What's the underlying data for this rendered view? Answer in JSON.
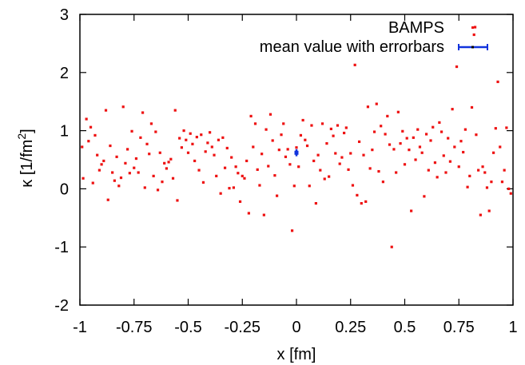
{
  "chart_data": {
    "type": "scatter",
    "xlabel": "x [fm]",
    "ylabel": "κ [1/fm",
    "ylabel_sup": "2",
    "ylabel_close": "]",
    "xlim": [
      -1,
      1
    ],
    "ylim": [
      -2,
      3
    ],
    "grid": false,
    "legend_position": "top-right",
    "x_ticks": [
      {
        "value": -1,
        "label": "-1"
      },
      {
        "value": -0.75,
        "label": "-0.75"
      },
      {
        "value": -0.5,
        "label": "-0.5"
      },
      {
        "value": -0.25,
        "label": "-0.25"
      },
      {
        "value": 0,
        "label": "0"
      },
      {
        "value": 0.25,
        "label": "0.25"
      },
      {
        "value": 0.5,
        "label": "0.5"
      },
      {
        "value": 0.75,
        "label": "0.75"
      },
      {
        "value": 1,
        "label": "1"
      }
    ],
    "y_ticks": [
      {
        "value": -2,
        "label": "-2"
      },
      {
        "value": -1,
        "label": "-1"
      },
      {
        "value": 0,
        "label": "0"
      },
      {
        "value": 1,
        "label": "1"
      },
      {
        "value": 2,
        "label": "2"
      },
      {
        "value": 3,
        "label": "3"
      }
    ],
    "series": [
      {
        "name": "BAMPS",
        "marker": "point",
        "color": "#ee1111",
        "points": [
          [
            -0.99,
            0.72
          ],
          [
            -0.985,
            0.18
          ],
          [
            -0.97,
            1.2
          ],
          [
            -0.96,
            0.82
          ],
          [
            -0.95,
            1.06
          ],
          [
            -0.94,
            0.1
          ],
          [
            -0.93,
            0.92
          ],
          [
            -0.92,
            0.58
          ],
          [
            -0.91,
            0.32
          ],
          [
            -0.9,
            0.42
          ],
          [
            -0.89,
            0.48
          ],
          [
            -0.88,
            1.35
          ],
          [
            -0.87,
            -0.19
          ],
          [
            -0.86,
            0.74
          ],
          [
            -0.85,
            0.28
          ],
          [
            -0.84,
            0.14
          ],
          [
            -0.83,
            0.55
          ],
          [
            -0.82,
            0.05
          ],
          [
            -0.81,
            0.19
          ],
          [
            -0.8,
            1.41
          ],
          [
            -0.79,
            0.44
          ],
          [
            -0.78,
            0.68
          ],
          [
            -0.77,
            0.27
          ],
          [
            -0.76,
            0.99
          ],
          [
            -0.75,
            0.36
          ],
          [
            -0.74,
            0.52
          ],
          [
            -0.73,
            0.28
          ],
          [
            -0.72,
            0.88
          ],
          [
            -0.71,
            1.31
          ],
          [
            -0.7,
            0.02
          ],
          [
            -0.69,
            0.77
          ],
          [
            -0.68,
            0.6
          ],
          [
            -0.67,
            1.12
          ],
          [
            -0.66,
            0.22
          ],
          [
            -0.65,
            0.98
          ],
          [
            -0.64,
            -0.02
          ],
          [
            -0.63,
            0.62
          ],
          [
            -0.62,
            0.12
          ],
          [
            -0.61,
            0.44
          ],
          [
            -0.6,
            0.35
          ],
          [
            -0.59,
            0.46
          ],
          [
            -0.58,
            0.51
          ],
          [
            -0.57,
            0.18
          ],
          [
            -0.56,
            1.35
          ],
          [
            -0.55,
            -0.2
          ],
          [
            -0.54,
            0.87
          ],
          [
            -0.53,
            0.71
          ],
          [
            -0.52,
            1.0
          ],
          [
            -0.51,
            0.84
          ],
          [
            -0.5,
            0.62
          ],
          [
            -0.49,
            0.95
          ],
          [
            -0.48,
            0.77
          ],
          [
            -0.47,
            0.48
          ],
          [
            -0.46,
            0.89
          ],
          [
            -0.45,
            0.32
          ],
          [
            -0.44,
            0.93
          ],
          [
            -0.43,
            0.11
          ],
          [
            -0.42,
            0.64
          ],
          [
            -0.41,
            0.79
          ],
          [
            -0.4,
            0.97
          ],
          [
            -0.39,
            0.72
          ],
          [
            -0.38,
            0.58
          ],
          [
            -0.37,
            0.22
          ],
          [
            -0.36,
            0.84
          ],
          [
            -0.35,
            -0.08
          ],
          [
            -0.34,
            0.88
          ],
          [
            -0.33,
            0.36
          ],
          [
            -0.32,
            0.7
          ],
          [
            -0.31,
            0.01
          ],
          [
            -0.3,
            0.54
          ],
          [
            -0.29,
            0.02
          ],
          [
            -0.28,
            0.38
          ],
          [
            -0.27,
            0.27
          ],
          [
            -0.26,
            -0.22
          ],
          [
            -0.25,
            0.22
          ],
          [
            -0.24,
            0.18
          ],
          [
            -0.23,
            0.48
          ],
          [
            -0.22,
            -0.42
          ],
          [
            -0.21,
            1.25
          ],
          [
            -0.2,
            0.72
          ],
          [
            -0.19,
            1.12
          ],
          [
            -0.18,
            0.33
          ],
          [
            -0.17,
            0.06
          ],
          [
            -0.16,
            0.6
          ],
          [
            -0.15,
            -0.45
          ],
          [
            -0.14,
            1.02
          ],
          [
            -0.13,
            0.39
          ],
          [
            -0.12,
            1.28
          ],
          [
            -0.11,
            0.83
          ],
          [
            -0.1,
            0.23
          ],
          [
            -0.09,
            -0.12
          ],
          [
            -0.08,
            0.67
          ],
          [
            -0.07,
            0.93
          ],
          [
            -0.06,
            1.12
          ],
          [
            -0.05,
            0.55
          ],
          [
            -0.04,
            0.68
          ],
          [
            -0.03,
            0.42
          ],
          [
            -0.02,
            -0.72
          ],
          [
            -0.01,
            0.05
          ],
          [
            0.0,
            0.71
          ],
          [
            0.01,
            0.38
          ],
          [
            0.02,
            0.92
          ],
          [
            0.03,
            1.18
          ],
          [
            0.04,
            0.84
          ],
          [
            0.05,
            0.74
          ],
          [
            0.06,
            0.05
          ],
          [
            0.07,
            1.09
          ],
          [
            0.08,
            0.48
          ],
          [
            0.09,
            -0.25
          ],
          [
            0.1,
            0.58
          ],
          [
            0.11,
            0.32
          ],
          [
            0.12,
            1.12
          ],
          [
            0.13,
            0.17
          ],
          [
            0.14,
            0.78
          ],
          [
            0.15,
            0.21
          ],
          [
            0.16,
            1.03
          ],
          [
            0.17,
            0.91
          ],
          [
            0.18,
            0.61
          ],
          [
            0.19,
            1.09
          ],
          [
            0.2,
            0.43
          ],
          [
            0.21,
            0.54
          ],
          [
            0.22,
            0.96
          ],
          [
            0.23,
            1.05
          ],
          [
            0.24,
            0.33
          ],
          [
            0.25,
            0.61
          ],
          [
            0.26,
            0.06
          ],
          [
            0.27,
            2.13
          ],
          [
            0.28,
            -0.11
          ],
          [
            0.29,
            0.81
          ],
          [
            0.3,
            -0.25
          ],
          [
            0.31,
            0.58
          ],
          [
            0.32,
            -0.22
          ],
          [
            0.33,
            1.41
          ],
          [
            0.34,
            0.35
          ],
          [
            0.35,
            0.67
          ],
          [
            0.36,
            0.98
          ],
          [
            0.37,
            1.46
          ],
          [
            0.38,
            0.3
          ],
          [
            0.39,
            1.08
          ],
          [
            0.4,
            0.12
          ],
          [
            0.41,
            0.94
          ],
          [
            0.42,
            1.25
          ],
          [
            0.43,
            0.76
          ],
          [
            0.44,
            -1.0
          ],
          [
            0.45,
            0.68
          ],
          [
            0.46,
            0.28
          ],
          [
            0.47,
            1.32
          ],
          [
            0.48,
            0.78
          ],
          [
            0.49,
            0.99
          ],
          [
            0.5,
            0.42
          ],
          [
            0.51,
            0.87
          ],
          [
            0.52,
            0.67
          ],
          [
            0.53,
            -0.38
          ],
          [
            0.54,
            0.88
          ],
          [
            0.55,
            0.5
          ],
          [
            0.56,
            1.02
          ],
          [
            0.57,
            0.72
          ],
          [
            0.58,
            0.62
          ],
          [
            0.59,
            -0.13
          ],
          [
            0.6,
            0.94
          ],
          [
            0.61,
            0.32
          ],
          [
            0.62,
            0.83
          ],
          [
            0.63,
            1.06
          ],
          [
            0.64,
            0.45
          ],
          [
            0.65,
            0.2
          ],
          [
            0.66,
            1.14
          ],
          [
            0.67,
            0.98
          ],
          [
            0.68,
            0.57
          ],
          [
            0.69,
            0.28
          ],
          [
            0.7,
            0.87
          ],
          [
            0.71,
            0.47
          ],
          [
            0.72,
            1.37
          ],
          [
            0.73,
            0.72
          ],
          [
            0.74,
            2.1
          ],
          [
            0.75,
            0.38
          ],
          [
            0.76,
            0.82
          ],
          [
            0.77,
            0.63
          ],
          [
            0.78,
            1.02
          ],
          [
            0.79,
            0.03
          ],
          [
            0.8,
            0.22
          ],
          [
            0.81,
            1.4
          ],
          [
            0.82,
            2.65
          ],
          [
            0.83,
            0.93
          ],
          [
            0.84,
            0.32
          ],
          [
            0.85,
            -0.45
          ],
          [
            0.86,
            0.38
          ],
          [
            0.87,
            0.28
          ],
          [
            0.88,
            0.02
          ],
          [
            0.89,
            -0.38
          ],
          [
            0.9,
            0.12
          ],
          [
            0.91,
            0.62
          ],
          [
            0.92,
            1.04
          ],
          [
            0.93,
            1.84
          ],
          [
            0.94,
            0.72
          ],
          [
            0.95,
            0.12
          ],
          [
            0.96,
            0.32
          ],
          [
            0.97,
            1.05
          ],
          [
            0.98,
            0.0
          ],
          [
            0.99,
            -0.08
          ],
          [
            0.825,
            2.78
          ]
        ]
      },
      {
        "name": "mean value with errorbars",
        "marker": "errorbar",
        "color": "#1133dd",
        "points": [
          {
            "x": 0.0,
            "y": 0.62,
            "yerr": 0.06
          }
        ]
      }
    ]
  }
}
